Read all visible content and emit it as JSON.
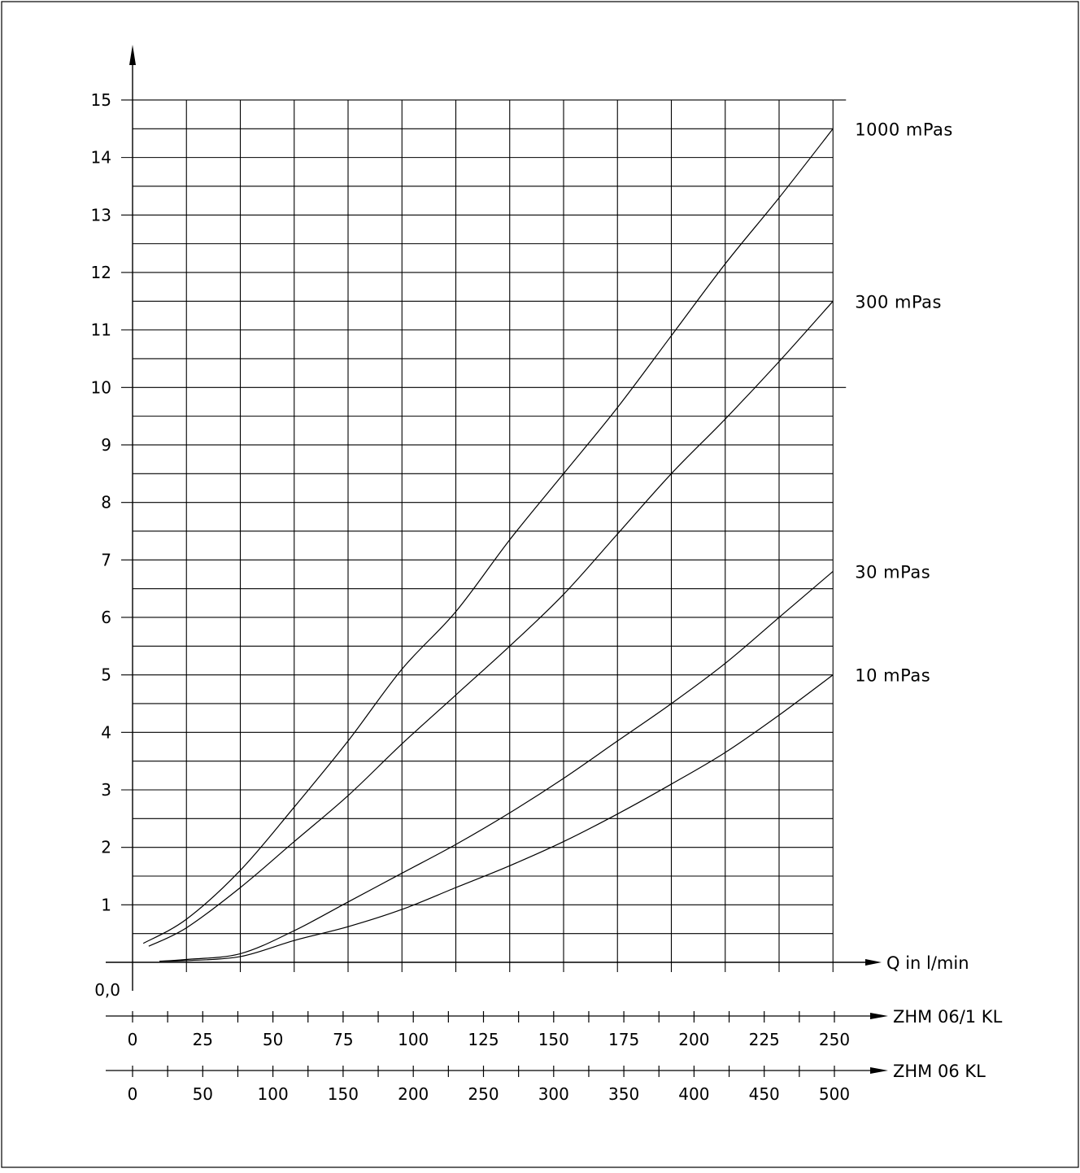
{
  "chart_data": {
    "type": "line",
    "title": "",
    "xlabel": "Q in l/min",
    "ylabel": "",
    "ylim": [
      0,
      15
    ],
    "xlim": [
      0,
      13
    ],
    "y_ticks": [
      "15",
      "14",
      "13",
      "12",
      "11",
      "10",
      "9",
      "8",
      "7",
      "6",
      "5",
      "4",
      "3",
      "2",
      "1"
    ],
    "y_origin_label": "0,0",
    "secondary_axes": [
      {
        "name": "ZHM 06/1 KL",
        "ticks": [
          "0",
          "25",
          "50",
          "75",
          "100",
          "125",
          "150",
          "175",
          "200",
          "225",
          "250"
        ]
      },
      {
        "name": "ZHM 06 KL",
        "ticks": [
          "0",
          "50",
          "100",
          "150",
          "200",
          "250",
          "300",
          "350",
          "400",
          "450",
          "500"
        ]
      }
    ],
    "grid": true,
    "series": [
      {
        "name": "1000 mPas",
        "points": [
          [
            0.2,
            0.33
          ],
          [
            1,
            0.75
          ],
          [
            2,
            1.6
          ],
          [
            3,
            2.7
          ],
          [
            4,
            3.85
          ],
          [
            5,
            5.1
          ],
          [
            6,
            6.1
          ],
          [
            7,
            7.35
          ],
          [
            8,
            8.5
          ],
          [
            9,
            9.65
          ],
          [
            10,
            10.9
          ],
          [
            11,
            12.15
          ],
          [
            12,
            13.3
          ],
          [
            13,
            14.5
          ]
        ]
      },
      {
        "name": "300 mPas",
        "points": [
          [
            0.3,
            0.28
          ],
          [
            1,
            0.6
          ],
          [
            2,
            1.3
          ],
          [
            3,
            2.1
          ],
          [
            4,
            2.9
          ],
          [
            5,
            3.8
          ],
          [
            6,
            4.65
          ],
          [
            7,
            5.5
          ],
          [
            8,
            6.4
          ],
          [
            9,
            7.45
          ],
          [
            10,
            8.5
          ],
          [
            11,
            9.45
          ],
          [
            12,
            10.45
          ],
          [
            13,
            11.5
          ]
        ]
      },
      {
        "name": "30 mPas",
        "points": [
          [
            0.5,
            0.02
          ],
          [
            1,
            0.05
          ],
          [
            2,
            0.15
          ],
          [
            3,
            0.55
          ],
          [
            4,
            1.05
          ],
          [
            5,
            1.55
          ],
          [
            6,
            2.05
          ],
          [
            7,
            2.6
          ],
          [
            8,
            3.2
          ],
          [
            9,
            3.85
          ],
          [
            10,
            4.5
          ],
          [
            11,
            5.2
          ],
          [
            12,
            6.0
          ],
          [
            13,
            6.8
          ]
        ]
      },
      {
        "name": "10 mPas",
        "points": [
          [
            0.5,
            0.02
          ],
          [
            1,
            0.03
          ],
          [
            2,
            0.1
          ],
          [
            3,
            0.38
          ],
          [
            4,
            0.62
          ],
          [
            5,
            0.92
          ],
          [
            6,
            1.3
          ],
          [
            7,
            1.68
          ],
          [
            8,
            2.1
          ],
          [
            9,
            2.58
          ],
          [
            10,
            3.1
          ],
          [
            11,
            3.65
          ],
          [
            12,
            4.3
          ],
          [
            13,
            5.0
          ]
        ]
      }
    ]
  }
}
